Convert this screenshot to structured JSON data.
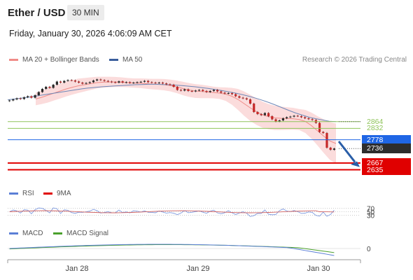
{
  "header": {
    "title": "Ether / USD",
    "interval": "30 MIN",
    "datetime": "Friday, January 30, 2026 4:06:09 AM CET"
  },
  "legend": {
    "bollinger_label": "MA 20 + Bollinger Bands",
    "bollinger_color": "#f08c88",
    "ma50_label": "MA 50",
    "ma50_color": "#3a5e9c",
    "rsi_label": "RSI",
    "rsi_color": "#5b7fd6",
    "rsi_ma_label": "9MA",
    "rsi_ma_color": "#e00000",
    "macd_label": "MACD",
    "macd_color": "#5b7fd6",
    "macd_signal_label": "MACD Signal",
    "macd_signal_color": "#4aa02c"
  },
  "credit": "Research © 2026 Trading Central",
  "chart_data": {
    "type": "candlestick",
    "x_labels": [
      "Jan 28",
      "Jan 29",
      "Jan 30"
    ],
    "price_levels": [
      {
        "value": 2864,
        "label": "2864",
        "kind": "resistance",
        "color": "#8fc45a"
      },
      {
        "value": 2832,
        "label": "2832",
        "kind": "resistance",
        "color": "#8fc45a"
      },
      {
        "value": 2778,
        "label": "2778",
        "kind": "pivot",
        "color": "#1f66e5"
      },
      {
        "value": 2736,
        "label": "2736",
        "kind": "last",
        "color": "#2d2d2d"
      },
      {
        "value": 2667,
        "label": "2667",
        "kind": "support",
        "color": "#e00000"
      },
      {
        "value": 2635,
        "label": "2635",
        "kind": "support",
        "color": "#e00000"
      }
    ],
    "price_ylim": [
      2610,
      3110
    ],
    "closes": [
      2965,
      2970,
      2975,
      2972,
      2980,
      2985,
      2978,
      2990,
      3005,
      3020,
      3030,
      3025,
      3040,
      3055,
      3050,
      3058,
      3062,
      3060,
      3055,
      3050,
      3045,
      3048,
      3052,
      3060,
      3065,
      3062,
      3058,
      3055,
      3052,
      3050,
      3056,
      3050,
      3052,
      3048,
      3050,
      3052,
      3054,
      3058,
      3052,
      3050,
      3048,
      3050,
      3046,
      3042,
      3040,
      3030,
      3015,
      3012,
      3018,
      3010,
      3008,
      3012,
      3015,
      3010,
      3005,
      3010,
      3015,
      3008,
      3002,
      2998,
      3000,
      2995,
      2985,
      2978,
      2975,
      2970,
      2950,
      2910,
      2900,
      2895,
      2905,
      2890,
      2875,
      2865,
      2870,
      2880,
      2885,
      2888,
      2892,
      2890,
      2885,
      2880,
      2876,
      2872,
      2858,
      2815,
      2810,
      2740,
      2730,
      2736
    ],
    "bollinger": {
      "ma20": [
        2972,
        2980,
        2990,
        3000,
        3010,
        3020,
        3028,
        3035,
        3040,
        3045,
        3050,
        3052,
        3053,
        3053,
        3052,
        3050,
        3048,
        3047,
        3045,
        3043,
        3042,
        3040,
        3036,
        3030,
        3022,
        3015,
        3010,
        3008,
        3006,
        3003,
        3000,
        2995,
        2985,
        2970,
        2950,
        2930,
        2912,
        2897,
        2888,
        2882,
        2880,
        2879,
        2878,
        2874,
        2865,
        2845,
        2820,
        2795,
        2772,
        2760
      ],
      "upper_offset": [
        30,
        32,
        35,
        35,
        36,
        36,
        35,
        34,
        32,
        30,
        28,
        26,
        25,
        24,
        23,
        22,
        22,
        23,
        24,
        25,
        26,
        27,
        28,
        30,
        32,
        33,
        33,
        32,
        30,
        28,
        28,
        32,
        40,
        50,
        58,
        62,
        63,
        62,
        60,
        58,
        56,
        54,
        52,
        50,
        55,
        62,
        70,
        80,
        90,
        95
      ],
      "lower_offset": [
        30,
        32,
        35,
        35,
        36,
        36,
        35,
        34,
        32,
        30,
        28,
        26,
        25,
        24,
        23,
        22,
        22,
        23,
        24,
        25,
        26,
        27,
        28,
        30,
        32,
        33,
        33,
        32,
        30,
        28,
        28,
        32,
        40,
        50,
        58,
        62,
        63,
        62,
        60,
        58,
        56,
        54,
        52,
        50,
        55,
        62,
        70,
        80,
        90,
        95
      ]
    },
    "ma50": [
      2968,
      2972,
      2976,
      2980,
      2985,
      2990,
      2995,
      3000,
      3005,
      3010,
      3015,
      3020,
      3024,
      3027,
      3030,
      3032,
      3034,
      3036,
      3038,
      3040,
      3041,
      3042,
      3042,
      3041,
      3040,
      3038,
      3036,
      3033,
      3030,
      3026,
      3022,
      3017,
      3012,
      3006,
      3000,
      2993,
      2985,
      2976,
      2966,
      2955,
      2943,
      2930,
      2917,
      2905,
      2895,
      2885,
      2878,
      2872,
      2866,
      2864
    ],
    "rsi": {
      "levels": [
        70,
        50,
        30
      ],
      "ylim": [
        0,
        100
      ]
    },
    "macd": {
      "zero_label": "0"
    }
  }
}
